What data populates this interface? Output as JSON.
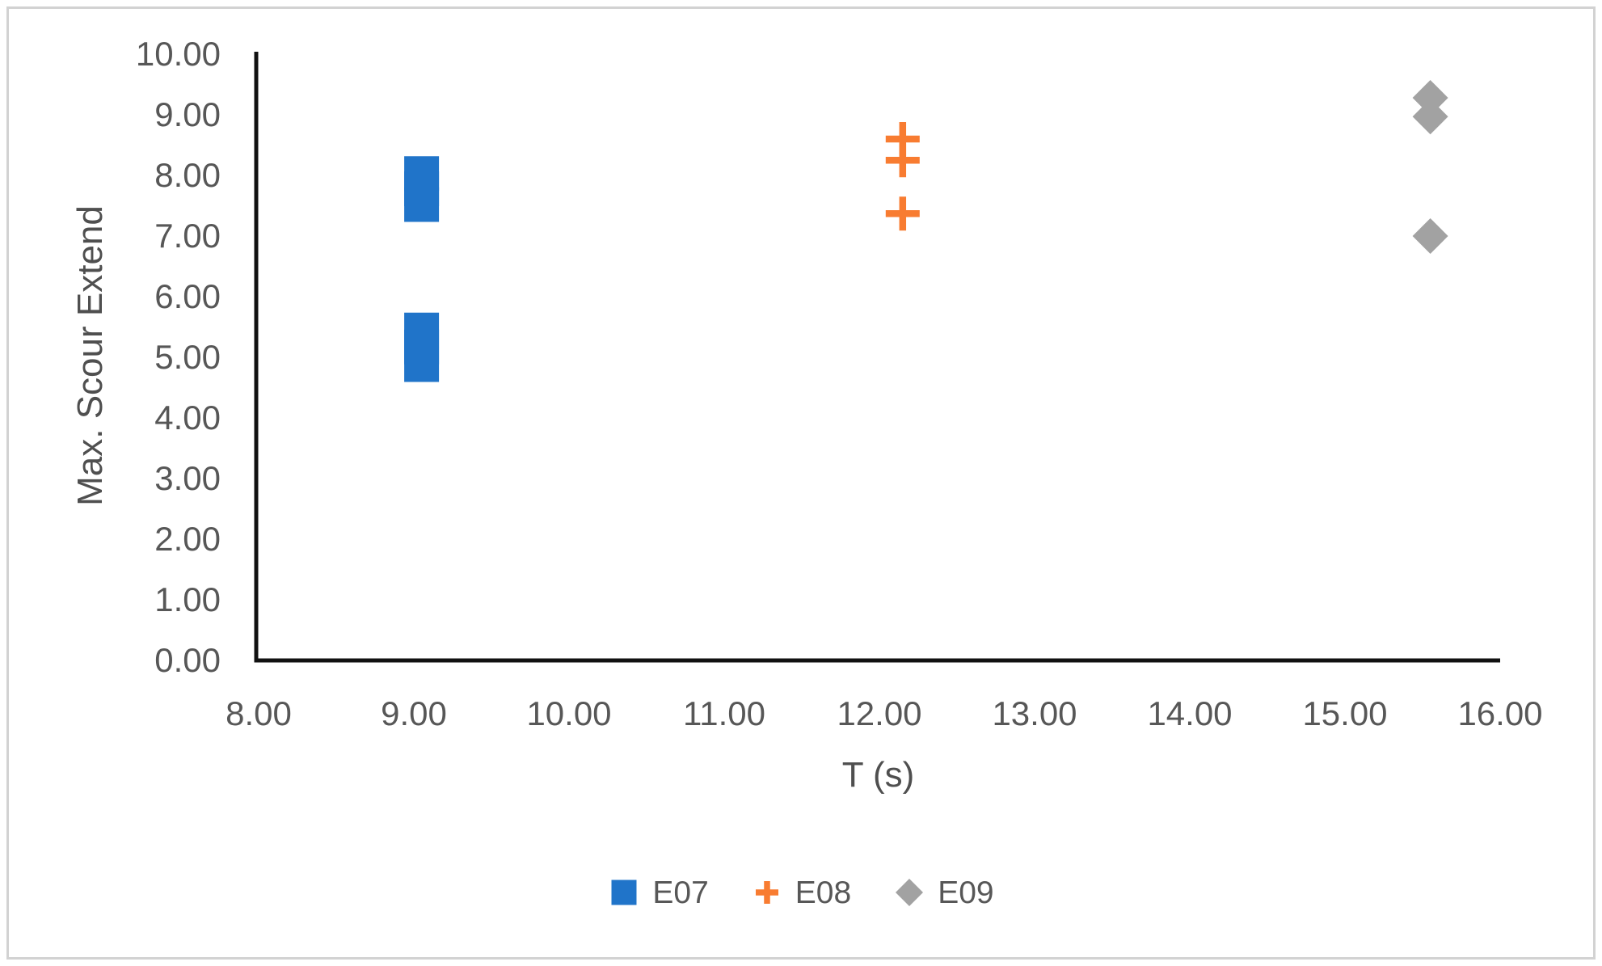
{
  "figure": {
    "x_axis_title": "T (s)",
    "y_axis_title": "Max. Scour Extend"
  },
  "chart_data": {
    "type": "scatter",
    "title": "",
    "xlabel": "T (s)",
    "ylabel": "Max. Scour Extend",
    "xlim": [
      8,
      16
    ],
    "ylim": [
      0,
      10
    ],
    "x_tick_labels": [
      "8.00",
      "9.00",
      "10.00",
      "11.00",
      "12.00",
      "13.00",
      "14.00",
      "15.00",
      "16.00"
    ],
    "y_tick_labels": [
      "0.00",
      "1.00",
      "2.00",
      "3.00",
      "4.00",
      "5.00",
      "6.00",
      "7.00",
      "8.00",
      "9.00",
      "10.00"
    ],
    "grid": false,
    "legend_position": "bottom-center",
    "axis_line_color": "#111111",
    "text_color": "#575757",
    "series": [
      {
        "name": "E07",
        "marker": "square",
        "color": "#2074C9",
        "points": [
          [
            9.05,
            8.03
          ],
          [
            9.05,
            7.78
          ],
          [
            9.05,
            7.52
          ],
          [
            9.05,
            5.45
          ],
          [
            9.05,
            5.17
          ],
          [
            9.05,
            4.88
          ]
        ]
      },
      {
        "name": "E08",
        "marker": "plus",
        "color": "#F87C31",
        "points": [
          [
            12.15,
            8.6
          ],
          [
            12.15,
            8.25
          ],
          [
            12.15,
            7.37
          ]
        ]
      },
      {
        "name": "E09",
        "marker": "diamond",
        "color": "#A2A2A2",
        "points": [
          [
            15.55,
            9.28
          ],
          [
            15.55,
            8.97
          ],
          [
            15.55,
            7.0
          ]
        ]
      }
    ]
  }
}
